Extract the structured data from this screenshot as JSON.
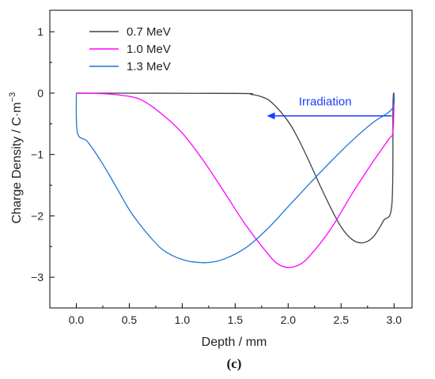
{
  "chart_data": {
    "type": "line",
    "title": "",
    "xlabel": "Depth / mm",
    "ylabel": "Charge Density / C·m",
    "ylabel_superscript": "−3",
    "xlim": [
      -0.25,
      3.17
    ],
    "ylim": [
      -3.5,
      1.35
    ],
    "x_ticks": [
      0.0,
      0.5,
      1.0,
      1.5,
      2.0,
      2.5,
      3.0
    ],
    "x_tick_labels": [
      "0.0",
      "0.5",
      "1.0",
      "1.5",
      "2.0",
      "2.5",
      "3.0"
    ],
    "y_ticks": [
      -3,
      -2,
      -1,
      0,
      1
    ],
    "y_tick_labels": [
      "−3",
      "−2",
      "−1",
      "0",
      "1"
    ],
    "grid": false,
    "legend_position": "top-left",
    "series": [
      {
        "name": "0.7 MeV",
        "color": "#404040",
        "points": [
          [
            0.0,
            0.0
          ],
          [
            1.5,
            -0.005
          ],
          [
            1.65,
            -0.02
          ],
          [
            1.75,
            -0.06
          ],
          [
            1.85,
            -0.16
          ],
          [
            2.0,
            -0.46
          ],
          [
            2.1,
            -0.76
          ],
          [
            2.2,
            -1.12
          ],
          [
            2.3,
            -1.5
          ],
          [
            2.4,
            -1.86
          ],
          [
            2.5,
            -2.18
          ],
          [
            2.6,
            -2.38
          ],
          [
            2.7,
            -2.44
          ],
          [
            2.8,
            -2.35
          ],
          [
            2.9,
            -2.08
          ],
          [
            2.98,
            -1.8
          ],
          [
            2.99,
            -0.2
          ],
          [
            3.0,
            0.0
          ]
        ]
      },
      {
        "name": "1.0 MeV",
        "color": "#ff00ff",
        "points": [
          [
            0.0,
            0.0
          ],
          [
            0.2,
            -0.005
          ],
          [
            0.4,
            -0.03
          ],
          [
            0.6,
            -0.1
          ],
          [
            0.8,
            -0.33
          ],
          [
            1.0,
            -0.65
          ],
          [
            1.2,
            -1.1
          ],
          [
            1.4,
            -1.62
          ],
          [
            1.6,
            -2.15
          ],
          [
            1.8,
            -2.6
          ],
          [
            1.9,
            -2.78
          ],
          [
            2.0,
            -2.84
          ],
          [
            2.1,
            -2.8
          ],
          [
            2.2,
            -2.66
          ],
          [
            2.4,
            -2.22
          ],
          [
            2.6,
            -1.65
          ],
          [
            2.8,
            -1.12
          ],
          [
            2.95,
            -0.75
          ],
          [
            2.99,
            -0.62
          ],
          [
            3.0,
            0.0
          ]
        ]
      },
      {
        "name": "1.3 MeV",
        "color": "#1f77d4",
        "points": [
          [
            0.0,
            0.0
          ],
          [
            0.01,
            -0.64
          ],
          [
            0.1,
            -0.78
          ],
          [
            0.2,
            -1.02
          ],
          [
            0.3,
            -1.3
          ],
          [
            0.4,
            -1.6
          ],
          [
            0.5,
            -1.9
          ],
          [
            0.6,
            -2.14
          ],
          [
            0.7,
            -2.35
          ],
          [
            0.8,
            -2.53
          ],
          [
            0.9,
            -2.64
          ],
          [
            1.0,
            -2.71
          ],
          [
            1.1,
            -2.75
          ],
          [
            1.25,
            -2.76
          ],
          [
            1.4,
            -2.7
          ],
          [
            1.6,
            -2.52
          ],
          [
            1.8,
            -2.22
          ],
          [
            2.0,
            -1.85
          ],
          [
            2.2,
            -1.48
          ],
          [
            2.4,
            -1.12
          ],
          [
            2.6,
            -0.78
          ],
          [
            2.8,
            -0.48
          ],
          [
            2.98,
            -0.26
          ],
          [
            3.0,
            0.0
          ]
        ]
      }
    ],
    "annotations": [
      {
        "text": "Irradiation",
        "color": "#1a3cff",
        "arrow_from": [
          2.98,
          -0.37
        ],
        "arrow_to": [
          1.8,
          -0.37
        ],
        "text_at": [
          2.35,
          -0.2
        ]
      }
    ],
    "panel_label": "(c)"
  }
}
